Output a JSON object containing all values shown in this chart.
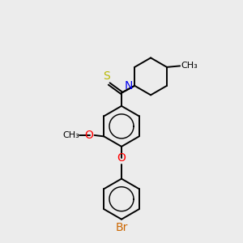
{
  "background_color": "#ececec",
  "atom_colors": {
    "S": "#b8b800",
    "N": "#0000ee",
    "O": "#ff0000",
    "Br": "#cc6600",
    "C": "#000000"
  },
  "bond_color": "#000000",
  "bond_width": 1.4,
  "font_size": 9,
  "fig_size": [
    3.0,
    3.0
  ],
  "dpi": 100
}
